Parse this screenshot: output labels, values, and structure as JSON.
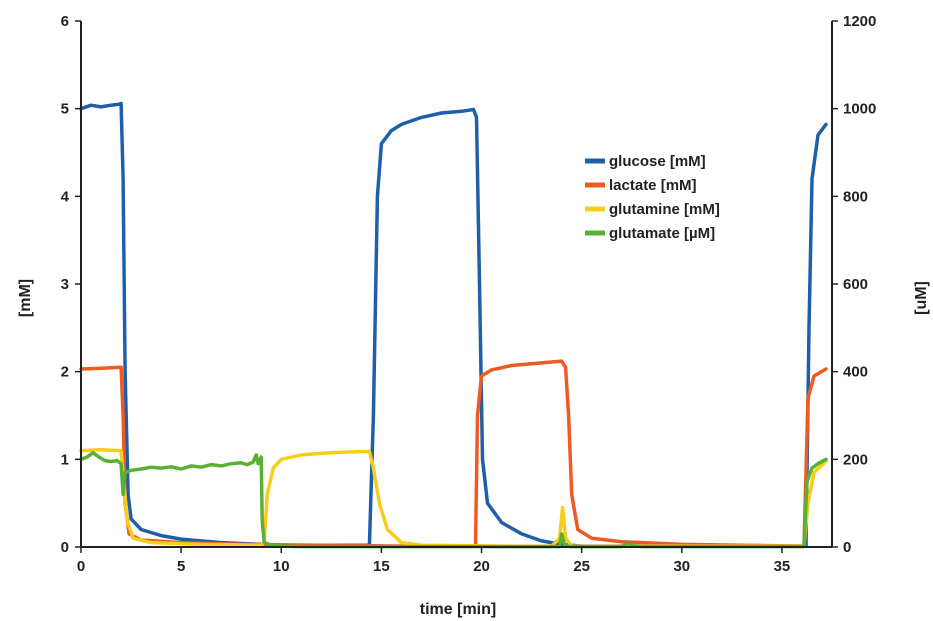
{
  "chart_data": {
    "type": "line",
    "title": "",
    "xlabel": "time [min]",
    "ylabel_left": "[mM]",
    "ylabel_right": "[uM]",
    "xlim": [
      0,
      37.5
    ],
    "ylim_left": [
      0,
      6
    ],
    "ylim_right": [
      0,
      1200
    ],
    "x_ticks": [
      0,
      5,
      10,
      15,
      20,
      25,
      30,
      35
    ],
    "y_ticks_left": [
      0,
      1,
      2,
      3,
      4,
      5,
      6
    ],
    "y_ticks_right": [
      0,
      200,
      400,
      600,
      800,
      1000,
      1200
    ],
    "grid": false,
    "legend_position": "upper-right-center",
    "series": [
      {
        "name": "glucose [mM]",
        "axis": "left",
        "color": "#1f5fa8",
        "points": [
          [
            0,
            5.0
          ],
          [
            0.5,
            5.04
          ],
          [
            1.0,
            5.02
          ],
          [
            1.5,
            5.04
          ],
          [
            1.9,
            5.05
          ],
          [
            2.0,
            5.06
          ],
          [
            2.1,
            4.2
          ],
          [
            2.2,
            2.0
          ],
          [
            2.35,
            0.6
          ],
          [
            2.5,
            0.32
          ],
          [
            3.0,
            0.2
          ],
          [
            4.0,
            0.13
          ],
          [
            5.0,
            0.09
          ],
          [
            6.0,
            0.07
          ],
          [
            7.0,
            0.05
          ],
          [
            8.0,
            0.04
          ],
          [
            9.0,
            0.03
          ],
          [
            10.0,
            0.02
          ],
          [
            12.0,
            0.02
          ],
          [
            14.4,
            0.02
          ],
          [
            14.6,
            1.5
          ],
          [
            14.8,
            4.0
          ],
          [
            15.0,
            4.6
          ],
          [
            15.5,
            4.75
          ],
          [
            16.0,
            4.82
          ],
          [
            17.0,
            4.9
          ],
          [
            18.0,
            4.95
          ],
          [
            19.0,
            4.97
          ],
          [
            19.6,
            4.99
          ],
          [
            19.75,
            4.9
          ],
          [
            19.9,
            3.0
          ],
          [
            20.05,
            1.0
          ],
          [
            20.3,
            0.5
          ],
          [
            21.0,
            0.28
          ],
          [
            22.0,
            0.15
          ],
          [
            23.0,
            0.07
          ],
          [
            24.0,
            0.03
          ],
          [
            25.0,
            0.01
          ],
          [
            30.0,
            0.01
          ],
          [
            35.0,
            0.01
          ],
          [
            36.2,
            0.01
          ],
          [
            36.35,
            2.5
          ],
          [
            36.5,
            4.2
          ],
          [
            36.8,
            4.7
          ],
          [
            37.2,
            4.82
          ]
        ]
      },
      {
        "name": "lactate [mM]",
        "axis": "left",
        "color": "#ee5a24",
        "points": [
          [
            0,
            2.03
          ],
          [
            1.0,
            2.04
          ],
          [
            2.0,
            2.05
          ],
          [
            2.1,
            1.5
          ],
          [
            2.2,
            0.5
          ],
          [
            2.4,
            0.15
          ],
          [
            3.0,
            0.08
          ],
          [
            5.0,
            0.05
          ],
          [
            8.0,
            0.03
          ],
          [
            12.0,
            0.02
          ],
          [
            16.0,
            0.01
          ],
          [
            19.7,
            0.01
          ],
          [
            19.8,
            1.5
          ],
          [
            20.0,
            1.95
          ],
          [
            20.5,
            2.02
          ],
          [
            21.5,
            2.07
          ],
          [
            23.0,
            2.1
          ],
          [
            24.0,
            2.12
          ],
          [
            24.2,
            2.05
          ],
          [
            24.35,
            1.5
          ],
          [
            24.5,
            0.6
          ],
          [
            24.8,
            0.2
          ],
          [
            25.5,
            0.1
          ],
          [
            27.0,
            0.06
          ],
          [
            30.0,
            0.03
          ],
          [
            33.0,
            0.02
          ],
          [
            36.1,
            0.01
          ],
          [
            36.3,
            1.7
          ],
          [
            36.6,
            1.95
          ],
          [
            37.2,
            2.03
          ]
        ]
      },
      {
        "name": "glutamine [mM]",
        "axis": "left",
        "color": "#f7cc1d",
        "points": [
          [
            0,
            1.1
          ],
          [
            1.0,
            1.11
          ],
          [
            2.0,
            1.1
          ],
          [
            2.15,
            0.7
          ],
          [
            2.3,
            0.3
          ],
          [
            2.6,
            0.1
          ],
          [
            3.5,
            0.05
          ],
          [
            6.0,
            0.03
          ],
          [
            9.0,
            0.02
          ],
          [
            9.15,
            0.05
          ],
          [
            9.3,
            0.6
          ],
          [
            9.6,
            0.9
          ],
          [
            10.0,
            1.0
          ],
          [
            11.0,
            1.05
          ],
          [
            12.0,
            1.07
          ],
          [
            13.0,
            1.08
          ],
          [
            14.4,
            1.09
          ],
          [
            14.6,
            0.9
          ],
          [
            14.9,
            0.5
          ],
          [
            15.3,
            0.2
          ],
          [
            16.0,
            0.05
          ],
          [
            17.0,
            0.02
          ],
          [
            21.5,
            0.01
          ],
          [
            23.5,
            0.01
          ],
          [
            23.9,
            0.1
          ],
          [
            24.05,
            0.45
          ],
          [
            24.2,
            0.1
          ],
          [
            24.5,
            0.01
          ],
          [
            30.0,
            0.01
          ],
          [
            36.1,
            0.01
          ],
          [
            36.3,
            0.5
          ],
          [
            36.6,
            0.85
          ],
          [
            37.2,
            0.98
          ]
        ]
      },
      {
        "name": "glutamate [µM]",
        "axis": "right",
        "color": "#5ab033",
        "points": [
          [
            0,
            200
          ],
          [
            0.3,
            205
          ],
          [
            0.6,
            215
          ],
          [
            0.9,
            205
          ],
          [
            1.2,
            197
          ],
          [
            1.5,
            195
          ],
          [
            1.8,
            197
          ],
          [
            2.0,
            190
          ],
          [
            2.1,
            120
          ],
          [
            2.2,
            170
          ],
          [
            2.5,
            175
          ],
          [
            3.0,
            178
          ],
          [
            3.5,
            182
          ],
          [
            4.0,
            180
          ],
          [
            4.5,
            183
          ],
          [
            5.0,
            178
          ],
          [
            5.5,
            185
          ],
          [
            6.0,
            182
          ],
          [
            6.5,
            188
          ],
          [
            7.0,
            185
          ],
          [
            7.5,
            190
          ],
          [
            8.0,
            192
          ],
          [
            8.3,
            188
          ],
          [
            8.6,
            194
          ],
          [
            8.75,
            210
          ],
          [
            8.85,
            190
          ],
          [
            9.0,
            205
          ],
          [
            9.05,
            60
          ],
          [
            9.15,
            10
          ],
          [
            9.5,
            4
          ],
          [
            10.0,
            2
          ],
          [
            11.0,
            1
          ],
          [
            14.0,
            1
          ],
          [
            19.7,
            1
          ],
          [
            23.9,
            1
          ],
          [
            24.0,
            30
          ],
          [
            24.15,
            5
          ],
          [
            24.4,
            1
          ],
          [
            27.0,
            1
          ],
          [
            27.3,
            8
          ],
          [
            27.6,
            3
          ],
          [
            28.0,
            1
          ],
          [
            36.1,
            1
          ],
          [
            36.25,
            150
          ],
          [
            36.5,
            180
          ],
          [
            36.8,
            190
          ],
          [
            37.2,
            200
          ]
        ]
      }
    ]
  }
}
